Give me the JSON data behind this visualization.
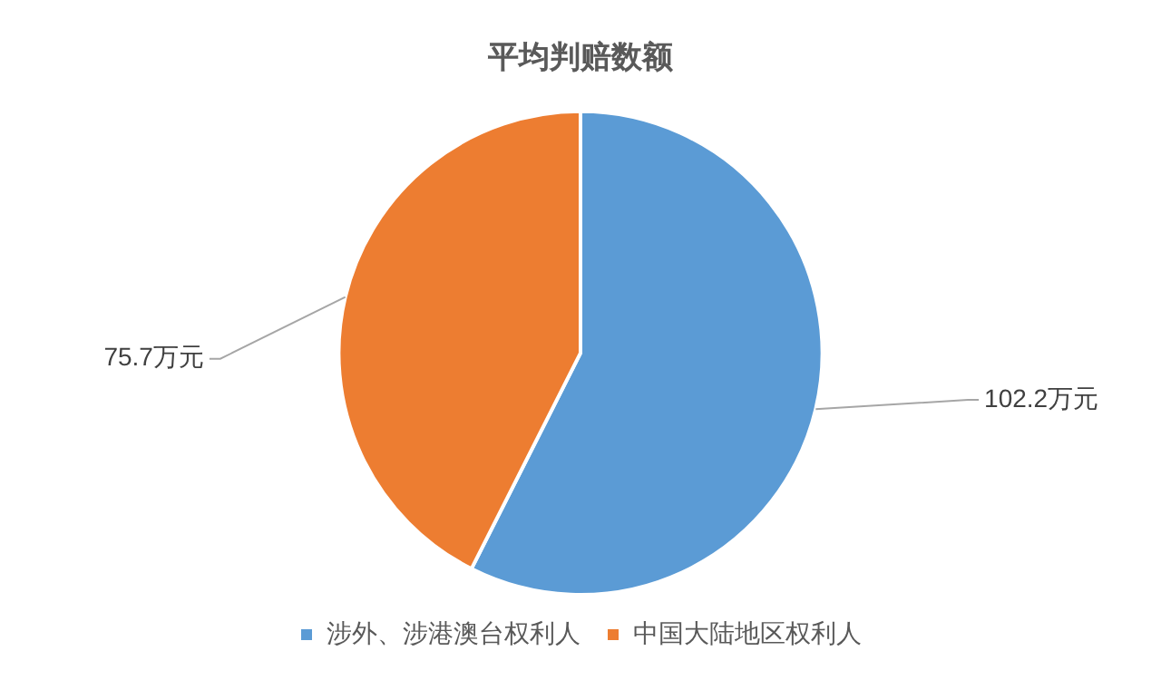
{
  "chart_data": {
    "type": "pie",
    "title": "平均判赔数额",
    "categories": [
      "涉外、涉港澳台权利人",
      "中国大陆地区权利人"
    ],
    "values": [
      102.2,
      75.7
    ],
    "colors": [
      "#5b9bd5",
      "#ed7d31"
    ],
    "value_labels": [
      "102.2万元",
      "75.7万元"
    ],
    "legend": "bottom"
  }
}
